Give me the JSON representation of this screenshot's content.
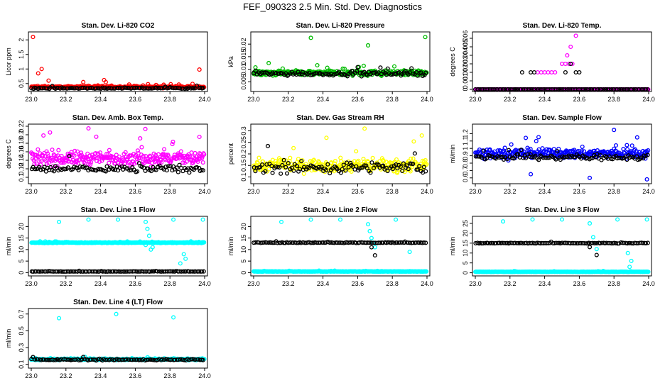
{
  "figure_title": "FEF_090323  2.5 Min. Std. Dev. Diagnostics",
  "chart_data": [
    {
      "type": "scatter",
      "title": "Stan. Dev. Li-820 CO2",
      "ylabel": "Licor ppm",
      "xlim": [
        23.0,
        24.0
      ],
      "ylim": [
        0.3,
        2.2
      ],
      "yticks": [
        0.5,
        1.0,
        1.5,
        2.0
      ],
      "xticks": [
        23.0,
        23.2,
        23.4,
        23.6,
        23.8,
        24.0
      ],
      "series": [
        {
          "color": "#ff0000",
          "base": 0.38,
          "noise": 0.05,
          "outliers": [
            [
              23.01,
              2.1
            ],
            [
              23.04,
              0.85
            ],
            [
              23.06,
              1.0
            ],
            [
              23.1,
              0.6
            ],
            [
              23.3,
              0.55
            ],
            [
              23.42,
              0.62
            ],
            [
              23.43,
              0.55
            ],
            [
              23.72,
              0.45
            ],
            [
              23.97,
              0.98
            ]
          ]
        },
        {
          "color": "#000000",
          "base": 0.34,
          "noise": 0.03,
          "outliers": []
        }
      ]
    },
    {
      "type": "scatter",
      "title": "Stan. Dev. Li-820 Pressure",
      "ylabel": "kPa",
      "xlim": [
        23.0,
        24.0
      ],
      "ylim": [
        0.002,
        0.024
      ],
      "yticks": [
        0.005,
        0.01,
        0.015,
        0.02
      ],
      "xticks": [
        23.0,
        23.2,
        23.4,
        23.6,
        23.8,
        24.0
      ],
      "series": [
        {
          "color": "#00bb00",
          "base": 0.0085,
          "noise": 0.0015,
          "outliers": [
            [
              23.33,
              0.0225
            ],
            [
              23.66,
              0.0195
            ],
            [
              23.99,
              0.0228
            ]
          ]
        },
        {
          "color": "#000000",
          "base": 0.0083,
          "noise": 0.0013,
          "outliers": []
        }
      ]
    },
    {
      "type": "scatter",
      "title": "Stan. Dev. Li-820 Temp.",
      "ylabel": "degrees C",
      "xlim": [
        23.0,
        24.0
      ],
      "ylim": [
        0.0,
        0.0065
      ],
      "yticks": [
        0.0,
        0.001,
        0.002,
        0.003,
        0.004,
        0.005,
        0.006
      ],
      "xticks": [
        23.0,
        23.2,
        23.4,
        23.6,
        23.8,
        24.0
      ],
      "series": [
        {
          "color": "#ff00ff",
          "base": 0.0,
          "noise": 0.0,
          "outliers": [
            [
              23.36,
              0.002
            ],
            [
              23.38,
              0.002
            ],
            [
              23.4,
              0.002
            ],
            [
              23.42,
              0.002
            ],
            [
              23.44,
              0.002
            ],
            [
              23.46,
              0.002
            ],
            [
              23.5,
              0.003
            ],
            [
              23.52,
              0.003
            ],
            [
              23.54,
              0.003
            ],
            [
              23.56,
              0.003
            ],
            [
              23.55,
              0.005
            ],
            [
              23.58,
              0.0063
            ],
            [
              23.53,
              0.004
            ]
          ]
        },
        {
          "color": "#000000",
          "base": 0.0,
          "noise": 0.0,
          "outliers": [
            [
              23.27,
              0.002
            ],
            [
              23.32,
              0.002
            ],
            [
              23.34,
              0.002
            ],
            [
              23.52,
              0.002
            ],
            [
              23.55,
              0.003
            ],
            [
              23.58,
              0.002
            ],
            [
              23.6,
              0.002
            ]
          ]
        }
      ]
    },
    {
      "type": "scatter",
      "title": "Stan. Dev. Amb. Box Temp.",
      "ylabel": "degrees C",
      "xlim": [
        23.0,
        24.0
      ],
      "ylim": [
        0.09,
        0.22
      ],
      "yticks": [
        0.1,
        0.12,
        0.14,
        0.16,
        0.18,
        0.2,
        0.22
      ],
      "xticks": [
        23.0,
        23.2,
        23.4,
        23.6,
        23.8,
        24.0
      ],
      "series": [
        {
          "color": "#ff00ff",
          "base": 0.145,
          "noise": 0.025,
          "outliers": [
            [
              23.33,
              0.215
            ],
            [
              23.97,
              0.195
            ]
          ]
        },
        {
          "color": "#000000",
          "base": 0.12,
          "noise": 0.012,
          "outliers": []
        }
      ]
    },
    {
      "type": "scatter",
      "title": "Stan. Dev. Gas Stream RH",
      "ylabel": "percent",
      "xlim": [
        23.0,
        24.0
      ],
      "ylim": [
        0.08,
        0.32
      ],
      "yticks": [
        0.1,
        0.15,
        0.2,
        0.25,
        0.3
      ],
      "xticks": [
        23.0,
        23.2,
        23.4,
        23.6,
        23.8,
        24.0
      ],
      "series": [
        {
          "color": "#ffff00",
          "base": 0.15,
          "noise": 0.04,
          "outliers": [
            [
              23.42,
              0.27
            ],
            [
              23.64,
              0.31
            ],
            [
              23.97,
              0.28
            ]
          ]
        },
        {
          "color": "#000000",
          "base": 0.14,
          "noise": 0.035,
          "outliers": []
        }
      ]
    },
    {
      "type": "scatter",
      "title": "Stan. Dev. Sample Flow",
      "ylabel": "ml/min",
      "xlim": [
        23.0,
        24.0
      ],
      "ylim": [
        0.55,
        1.3
      ],
      "yticks": [
        0.6,
        0.7,
        0.8,
        0.9,
        1.0,
        1.1,
        1.2
      ],
      "xticks": [
        23.0,
        23.2,
        23.4,
        23.6,
        23.8,
        24.0
      ],
      "series": [
        {
          "color": "#0000ff",
          "base": 0.93,
          "noise": 0.1,
          "outliers": [
            [
              23.32,
              0.65
            ],
            [
              23.66,
              0.6
            ],
            [
              23.8,
              1.25
            ],
            [
              23.99,
              0.58
            ]
          ]
        },
        {
          "color": "#000000",
          "base": 0.88,
          "noise": 0.06,
          "outliers": []
        }
      ]
    },
    {
      "type": "scatter",
      "title": "Stan. Dev. Line 1 Flow",
      "ylabel": "ml/min",
      "xlim": [
        23.0,
        24.0
      ],
      "ylim": [
        -0.5,
        23.5
      ],
      "yticks": [
        0,
        5,
        10,
        15,
        20
      ],
      "xticks": [
        23.0,
        23.2,
        23.4,
        23.6,
        23.8,
        24.0
      ],
      "series": [
        {
          "color": "#00ffff",
          "base": 13.0,
          "noise": 0.25,
          "outliers": [
            [
              23.16,
              22
            ],
            [
              23.33,
              23
            ],
            [
              23.5,
              23
            ],
            [
              23.66,
              22
            ],
            [
              23.67,
              19
            ],
            [
              23.68,
              16
            ],
            [
              23.66,
              12
            ],
            [
              23.69,
              10
            ],
            [
              23.7,
              11
            ],
            [
              23.82,
              23
            ],
            [
              23.88,
              8
            ],
            [
              23.89,
              6
            ],
            [
              23.86,
              4
            ],
            [
              23.99,
              23
            ]
          ]
        },
        {
          "color": "#000000",
          "base": 0.5,
          "noise": 0.1,
          "outliers": []
        }
      ]
    },
    {
      "type": "scatter",
      "title": "Stan. Dev. Line 2 Flow",
      "ylabel": "ml/min",
      "xlim": [
        23.0,
        24.0
      ],
      "ylim": [
        -0.5,
        23.5
      ],
      "yticks": [
        0,
        5,
        10,
        15,
        20
      ],
      "xticks": [
        23.0,
        23.2,
        23.4,
        23.6,
        23.8,
        24.0
      ],
      "series": [
        {
          "color": "#00ffff",
          "base": 0.5,
          "noise": 0.15,
          "outliers": [
            [
              23.16,
              22
            ],
            [
              23.33,
              23
            ],
            [
              23.5,
              23
            ],
            [
              23.66,
              21
            ],
            [
              23.67,
              18
            ],
            [
              23.68,
              15
            ],
            [
              23.69,
              13
            ],
            [
              23.7,
              11
            ],
            [
              23.82,
              23
            ],
            [
              23.9,
              9
            ]
          ]
        },
        {
          "color": "#000000",
          "base": 13.0,
          "noise": 0.25,
          "outliers": [
            [
              23.68,
              11
            ],
            [
              23.7,
              7.5
            ]
          ]
        }
      ]
    },
    {
      "type": "scatter",
      "title": "Stan. Dev. Line 3 Flow",
      "ylabel": "ml/min",
      "xlim": [
        23.0,
        24.0
      ],
      "ylim": [
        -0.5,
        27.5
      ],
      "yticks": [
        0,
        5,
        10,
        15,
        20,
        25
      ],
      "xticks": [
        23.0,
        23.2,
        23.4,
        23.6,
        23.8,
        24.0
      ],
      "series": [
        {
          "color": "#00ffff",
          "base": 0.5,
          "noise": 0.15,
          "outliers": [
            [
              23.16,
              26
            ],
            [
              23.33,
              27
            ],
            [
              23.5,
              27
            ],
            [
              23.66,
              25
            ],
            [
              23.68,
              18
            ],
            [
              23.7,
              12
            ],
            [
              23.82,
              27
            ],
            [
              23.88,
              10
            ],
            [
              23.9,
              6
            ],
            [
              23.89,
              3
            ],
            [
              23.99,
              27
            ]
          ]
        },
        {
          "color": "#000000",
          "base": 15.0,
          "noise": 0.3,
          "outliers": [
            [
              23.66,
              13
            ],
            [
              23.7,
              9
            ]
          ]
        }
      ]
    },
    {
      "type": "scatter",
      "title": "Stan. Dev. Line 4 (LT) Flow",
      "ylabel": "ml/min",
      "xlim": [
        23.0,
        24.0
      ],
      "ylim": [
        0.08,
        0.74
      ],
      "yticks": [
        0.1,
        0.3,
        0.5,
        0.7
      ],
      "xticks": [
        23.0,
        23.2,
        23.4,
        23.6,
        23.8,
        24.0
      ],
      "series": [
        {
          "color": "#00ffff",
          "base": 0.16,
          "noise": 0.015,
          "outliers": [
            [
              23.16,
              0.65
            ],
            [
              23.49,
              0.7
            ],
            [
              23.82,
              0.66
            ]
          ]
        },
        {
          "color": "#000000",
          "base": 0.155,
          "noise": 0.012,
          "outliers": []
        }
      ]
    }
  ]
}
